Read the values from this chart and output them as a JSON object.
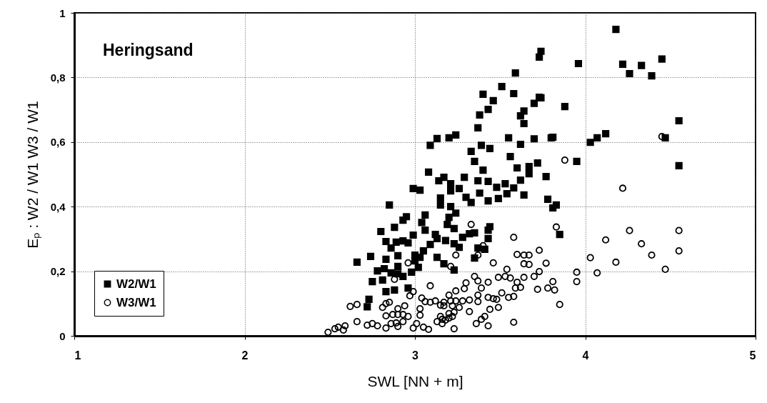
{
  "chart_data": {
    "type": "scatter",
    "xlabel": "SWL [NN + m]",
    "ylabel": "Eₚ :  W2 / W1   W3 / W1",
    "annotations": [
      "Heringsand"
    ],
    "xlim": [
      1,
      5
    ],
    "xticks": [
      1,
      2,
      3,
      4,
      5
    ],
    "ylim": [
      0,
      1
    ],
    "yticks": [
      0,
      {
        "value": 0.2,
        "label": "0,2"
      },
      {
        "value": 0.4,
        "label": "0,4"
      },
      {
        "value": 0.6,
        "label": "0,6"
      },
      {
        "value": 0.8,
        "label": "0,8"
      },
      1
    ],
    "grid": true,
    "legend": "bottom left",
    "series": [
      {
        "name": "W2/W1",
        "color": "#000000",
        "marker": "square",
        "x": [
          3.4,
          3.51,
          3.58,
          3.59,
          3.46,
          3.43,
          3.38,
          3.37,
          3.73,
          3.7,
          3.64,
          3.62,
          3.64,
          3.09,
          3.13,
          3.2,
          3.24,
          3.39,
          3.33,
          3.44,
          3.55,
          3.62,
          3.7,
          3.8,
          3.35,
          3.56,
          3.4,
          3.6,
          3.67,
          3.67,
          3.72,
          3.77,
          3.08,
          3.14,
          3.17,
          3.21,
          3.21,
          3.26,
          3.29,
          3.37,
          3.43,
          3.48,
          3.53,
          3.58,
          3.62,
          3.38,
          3.49,
          3.54,
          3.64,
          3.43,
          3.78,
          3.81,
          2.99,
          3.03,
          3.3,
          3.33,
          3.15,
          3.15,
          3.21,
          3.24,
          3.2,
          3.19,
          3.23,
          3.06,
          3.04,
          3.06,
          2.85,
          2.95,
          2.93,
          2.88,
          2.8,
          2.99,
          3.12,
          3.13,
          3.18,
          3.28,
          3.32,
          3.35,
          3.43,
          3.44,
          3.43,
          2.83,
          2.89,
          2.93,
          2.96,
          2.86,
          3.09,
          3.23,
          3.26,
          3.37,
          3.41,
          2.74,
          2.66,
          2.9,
          3.0,
          3.05,
          2.83,
          3.0,
          3.03,
          3.13,
          3.35,
          2.78,
          2.82,
          2.9,
          2.86,
          2.9,
          2.93,
          2.98,
          3.02,
          3.17,
          3.23,
          2.75,
          2.81,
          2.83,
          2.88,
          2.96,
          2.73,
          2.72,
          3.74,
          3.73,
          3.96,
          4.18,
          4.22,
          4.26,
          4.33,
          4.39,
          4.45,
          3.74,
          3.88,
          3.81,
          4.03,
          4.07,
          4.12,
          4.55,
          4.47,
          3.95,
          4.55,
          3.83,
          3.85
        ],
        "values": [
          0.748,
          0.772,
          0.75,
          0.814,
          0.728,
          0.701,
          0.684,
          0.644,
          0.739,
          0.72,
          0.696,
          0.681,
          0.657,
          0.59,
          0.611,
          0.613,
          0.622,
          0.59,
          0.571,
          0.58,
          0.613,
          0.593,
          0.61,
          0.613,
          0.54,
          0.555,
          0.513,
          0.52,
          0.524,
          0.502,
          0.535,
          0.493,
          0.507,
          0.48,
          0.491,
          0.471,
          0.449,
          0.456,
          0.491,
          0.48,
          0.478,
          0.46,
          0.471,
          0.458,
          0.482,
          0.442,
          0.425,
          0.44,
          0.436,
          0.418,
          0.423,
          0.396,
          0.456,
          0.451,
          0.429,
          0.413,
          0.427,
          0.405,
          0.4,
          0.38,
          0.367,
          0.345,
          0.332,
          0.374,
          0.351,
          0.327,
          0.405,
          0.369,
          0.358,
          0.336,
          0.323,
          0.312,
          0.314,
          0.301,
          0.295,
          0.305,
          0.316,
          0.319,
          0.327,
          0.338,
          0.301,
          0.292,
          0.29,
          0.294,
          0.288,
          0.272,
          0.283,
          0.285,
          0.274,
          0.272,
          0.268,
          0.246,
          0.228,
          0.248,
          0.25,
          0.263,
          0.237,
          0.232,
          0.243,
          0.243,
          0.241,
          0.201,
          0.208,
          0.215,
          0.195,
          0.192,
          0.184,
          0.197,
          0.212,
          0.223,
          0.204,
          0.168,
          0.173,
          0.137,
          0.142,
          0.148,
          0.113,
          0.09,
          0.881,
          0.863,
          0.843,
          0.949,
          0.841,
          0.812,
          0.837,
          0.805,
          0.857,
          0.737,
          0.71,
          0.615,
          0.599,
          0.613,
          0.626,
          0.666,
          0.613,
          0.54,
          0.527,
          0.405,
          0.314
        ]
      },
      {
        "name": "W3/W1",
        "color": "#000000",
        "marker": "circle",
        "x": [
          3.88,
          4.22,
          3.83,
          4.26,
          4.55,
          4.12,
          4.33,
          4.39,
          4.55,
          4.03,
          4.18,
          3.77,
          3.73,
          3.95,
          4.07,
          4.47,
          3.95,
          3.81,
          3.78,
          3.82,
          3.85,
          3.73,
          4.45,
          3.33,
          3.58,
          3.4,
          3.37,
          3.24,
          3.46,
          3.6,
          3.64,
          3.67,
          3.64,
          3.67,
          2.96,
          3.21,
          3.54,
          3.09,
          2.88,
          3.35,
          3.3,
          3.37,
          3.43,
          3.49,
          3.53,
          3.56,
          3.6,
          3.64,
          3.7,
          3.39,
          3.29,
          3.24,
          3.59,
          3.62,
          3.72,
          2.99,
          2.97,
          3.51,
          3.37,
          3.2,
          2.85,
          2.83,
          3.04,
          3.06,
          3.09,
          3.12,
          3.17,
          3.21,
          3.24,
          3.28,
          3.32,
          3.37,
          3.43,
          3.46,
          3.48,
          3.55,
          3.58,
          2.62,
          2.66,
          2.81,
          2.9,
          2.94,
          3.03,
          3.15,
          3.17,
          3.22,
          3.26,
          2.83,
          2.87,
          2.9,
          2.93,
          2.96,
          3.03,
          3.15,
          3.2,
          3.23,
          3.32,
          3.44,
          3.49,
          3.41,
          3.39,
          3.16,
          3.2,
          3.22,
          3.13,
          3.16,
          3.18,
          2.66,
          2.72,
          2.75,
          2.78,
          2.83,
          2.86,
          2.89,
          2.9,
          2.93,
          2.99,
          3.01,
          3.05,
          3.08,
          3.23,
          3.36,
          3.43,
          3.58,
          2.59,
          2.58,
          2.49,
          2.53,
          2.55
        ],
        "values": [
          0.544,
          0.457,
          0.337,
          0.326,
          0.326,
          0.297,
          0.285,
          0.25,
          0.263,
          0.242,
          0.228,
          0.225,
          0.265,
          0.197,
          0.195,
          0.206,
          0.168,
          0.168,
          0.148,
          0.142,
          0.097,
          0.199,
          0.617,
          0.345,
          0.305,
          0.279,
          0.25,
          0.25,
          0.226,
          0.252,
          0.25,
          0.25,
          0.223,
          0.221,
          0.226,
          0.215,
          0.206,
          0.155,
          0.175,
          0.184,
          0.164,
          0.17,
          0.166,
          0.181,
          0.184,
          0.179,
          0.166,
          0.181,
          0.184,
          0.148,
          0.146,
          0.139,
          0.148,
          0.15,
          0.144,
          0.137,
          0.124,
          0.133,
          0.126,
          0.126,
          0.104,
          0.1,
          0.117,
          0.106,
          0.104,
          0.108,
          0.104,
          0.108,
          0.108,
          0.108,
          0.111,
          0.106,
          0.119,
          0.115,
          0.113,
          0.119,
          0.122,
          0.091,
          0.097,
          0.088,
          0.084,
          0.093,
          0.084,
          0.095,
          0.093,
          0.093,
          0.088,
          0.062,
          0.066,
          0.066,
          0.066,
          0.06,
          0.064,
          0.06,
          0.069,
          0.073,
          0.075,
          0.082,
          0.088,
          0.06,
          0.051,
          0.051,
          0.055,
          0.06,
          0.044,
          0.038,
          0.049,
          0.044,
          0.033,
          0.038,
          0.031,
          0.024,
          0.038,
          0.04,
          0.029,
          0.044,
          0.024,
          0.038,
          0.027,
          0.02,
          0.022,
          0.038,
          0.031,
          0.042,
          0.031,
          0.018,
          0.011,
          0.022,
          0.027
        ]
      }
    ]
  }
}
